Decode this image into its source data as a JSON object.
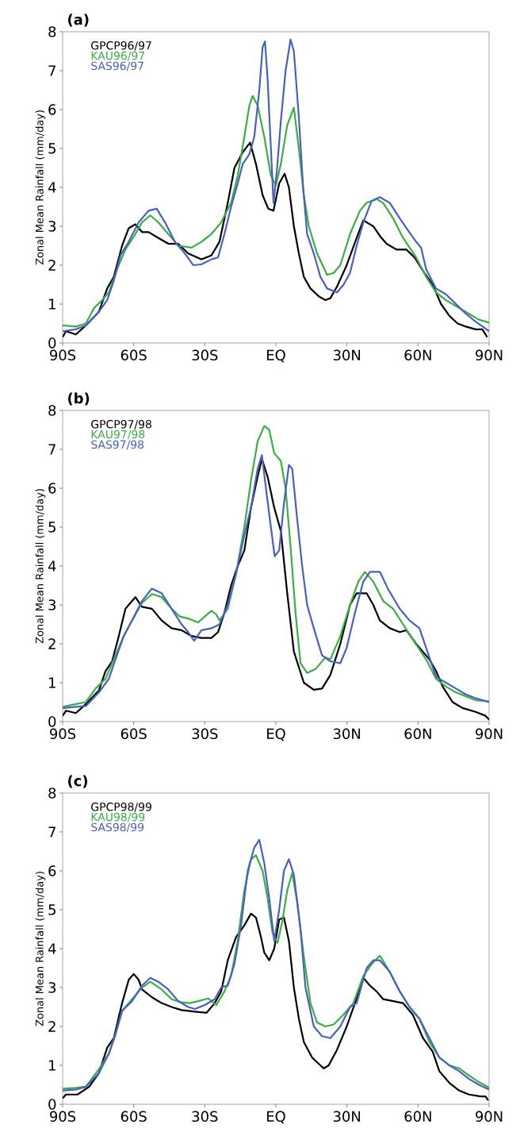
{
  "chart_data": [
    {
      "type": "line",
      "title": "(a)",
      "ylabel": "Zonal Mean Rainfall (mm/day)",
      "xlim": [
        -90,
        90
      ],
      "ylim": [
        0,
        8
      ],
      "xticks": [
        {
          "value": -90,
          "label": "90S"
        },
        {
          "value": -60,
          "label": "60S"
        },
        {
          "value": -30,
          "label": "30S"
        },
        {
          "value": 0,
          "label": "EQ"
        },
        {
          "value": 30,
          "label": "30N"
        },
        {
          "value": 60,
          "label": "60N"
        },
        {
          "value": 90,
          "label": "90N"
        }
      ],
      "yticks": [
        0,
        1,
        2,
        3,
        4,
        5,
        6,
        7,
        8
      ],
      "legend": "top left",
      "grid": false,
      "line_style": "solid",
      "series": [
        {
          "name": "GPCP96/97",
          "color": "#000000",
          "x": [
            -90,
            -88.6,
            -84.4,
            -80.2,
            -74.7,
            -71.2,
            -68.4,
            -64.9,
            -62.1,
            -59.3,
            -56.5,
            -53.7,
            -49.6,
            -45.4,
            -41.2,
            -37,
            -31.4,
            -27.2,
            -23.8,
            -20.3,
            -17.5,
            -14,
            -10.9,
            -8.4,
            -5.6,
            -3.2,
            -1,
            1.4,
            3.7,
            5.5,
            7.6,
            9.7,
            11.8,
            14.6,
            18.1,
            20.9,
            23,
            25.8,
            29.9,
            34.1,
            36.9,
            41.1,
            43.9,
            46.7,
            50.9,
            55.1,
            58.5,
            62.7,
            66.2,
            69.7,
            73.2,
            76.7,
            80.2,
            84.3,
            87.1,
            89.2
          ],
          "values": [
            0.15,
            0.3,
            0.22,
            0.45,
            0.8,
            1.4,
            1.7,
            2.5,
            2.95,
            3.05,
            2.85,
            2.85,
            2.7,
            2.55,
            2.55,
            2.3,
            2.15,
            2.25,
            2.6,
            3.6,
            4.5,
            4.9,
            5.15,
            4.6,
            3.8,
            3.45,
            3.4,
            4.1,
            4.35,
            4.0,
            3.0,
            2.3,
            1.7,
            1.4,
            1.2,
            1.1,
            1.15,
            1.45,
            2.0,
            2.7,
            3.15,
            3.0,
            2.75,
            2.55,
            2.4,
            2.4,
            2.2,
            1.8,
            1.5,
            1.0,
            0.7,
            0.5,
            0.42,
            0.35,
            0.35,
            0.15
          ]
        },
        {
          "name": "KAU96/97",
          "color": "#3cae45",
          "x": [
            -90,
            -84.4,
            -80.2,
            -76.7,
            -73.3,
            -70.5,
            -66.3,
            -63.5,
            -59.3,
            -56.5,
            -53,
            -49.6,
            -45.4,
            -41.2,
            -35.6,
            -31.4,
            -27.2,
            -23.1,
            -18.9,
            -16.1,
            -13.3,
            -11.2,
            -9.8,
            -7.7,
            -4.9,
            -2.1,
            0,
            2.1,
            4.8,
            7.6,
            9.7,
            11.8,
            13.9,
            17.4,
            21.6,
            24.4,
            27.2,
            31.3,
            35.5,
            38.3,
            42.5,
            45.3,
            49.5,
            53.7,
            59.2,
            63.4,
            67.6,
            71.8,
            76,
            81.5,
            85.7,
            90
          ],
          "values": [
            0.45,
            0.42,
            0.5,
            0.9,
            1.1,
            1.3,
            2.0,
            2.4,
            2.8,
            3.1,
            3.28,
            3.1,
            2.8,
            2.5,
            2.45,
            2.6,
            2.8,
            3.1,
            3.6,
            4.3,
            5.3,
            6.1,
            6.35,
            6.1,
            5.3,
            4.3,
            4.05,
            4.6,
            5.6,
            6.05,
            5.0,
            3.8,
            3.0,
            2.3,
            1.75,
            1.8,
            2.0,
            2.8,
            3.4,
            3.6,
            3.7,
            3.6,
            3.2,
            2.7,
            2.2,
            1.7,
            1.3,
            1.1,
            0.95,
            0.75,
            0.6,
            0.52
          ]
        },
        {
          "name": "SAS96/97",
          "color": "#4a60c0",
          "x": [
            -90,
            -84.4,
            -80.2,
            -74.7,
            -71.2,
            -68.4,
            -65.6,
            -62.1,
            -57.9,
            -53.7,
            -50.3,
            -46.8,
            -42.6,
            -38.4,
            -34.9,
            -31.4,
            -27.2,
            -24.4,
            -21.7,
            -18.9,
            -16.1,
            -14,
            -11.2,
            -9.1,
            -7,
            -5.6,
            -4.6,
            -3.5,
            -2.1,
            -1,
            0.4,
            2.1,
            4.1,
            6.2,
            7.6,
            9.7,
            11.5,
            13.2,
            16,
            18.8,
            21.6,
            25.8,
            28.6,
            31.3,
            34.1,
            36.9,
            40.4,
            43.9,
            48.1,
            52.3,
            55.7,
            59.2,
            61.3,
            63.4,
            67.6,
            71.8,
            76,
            80.2,
            84.3,
            87.8,
            90
          ],
          "values": [
            0.3,
            0.35,
            0.45,
            0.8,
            1.1,
            1.6,
            2.25,
            2.6,
            3.1,
            3.4,
            3.45,
            3.1,
            2.6,
            2.3,
            2.0,
            2.02,
            2.15,
            2.2,
            2.8,
            3.5,
            4.1,
            4.6,
            4.85,
            5.3,
            6.5,
            7.6,
            7.75,
            6.8,
            5.0,
            3.6,
            4.4,
            5.7,
            7.0,
            7.8,
            7.5,
            5.8,
            4.0,
            2.8,
            2.3,
            1.7,
            1.4,
            1.3,
            1.5,
            1.8,
            2.5,
            3.1,
            3.65,
            3.75,
            3.6,
            3.2,
            2.9,
            2.6,
            2.45,
            1.9,
            1.4,
            1.25,
            1.0,
            0.75,
            0.55,
            0.4,
            0.3
          ]
        }
      ]
    },
    {
      "type": "line",
      "title": "(b)",
      "ylabel": "Zonal Mean Rainfall (mm/day)",
      "xlim": [
        -90,
        90
      ],
      "ylim": [
        0,
        8
      ],
      "xticks": [
        {
          "value": -90,
          "label": "90S"
        },
        {
          "value": -60,
          "label": "60S"
        },
        {
          "value": -30,
          "label": "30S"
        },
        {
          "value": 0,
          "label": "EQ"
        },
        {
          "value": 30,
          "label": "30N"
        },
        {
          "value": 60,
          "label": "60N"
        },
        {
          "value": 90,
          "label": "90N"
        }
      ],
      "yticks": [
        0,
        1,
        2,
        3,
        4,
        5,
        6,
        7,
        8
      ],
      "legend": "top left",
      "grid": false,
      "line_style": "solid",
      "series": [
        {
          "name": "GPCP97/98",
          "color": "#000000",
          "x": [
            -90,
            -88.6,
            -84.4,
            -80.2,
            -74.7,
            -71.9,
            -69.1,
            -66.3,
            -63.5,
            -59.3,
            -56.5,
            -52.3,
            -48.2,
            -44,
            -39.8,
            -35.6,
            -31.4,
            -27.2,
            -24.4,
            -21.7,
            -18.9,
            -16.1,
            -13.3,
            -10.5,
            -7.7,
            -5.9,
            -3.5,
            -0.7,
            2.1,
            4.8,
            7.6,
            11.8,
            16,
            19.5,
            23,
            27.2,
            31.3,
            34.1,
            38.3,
            41.1,
            43.9,
            48.1,
            52.3,
            55.1,
            59.2,
            64.8,
            67.6,
            70.4,
            74.6,
            78.8,
            84.3,
            88.5,
            90
          ],
          "values": [
            0.15,
            0.28,
            0.22,
            0.45,
            0.8,
            1.3,
            1.55,
            2.2,
            2.9,
            3.2,
            2.95,
            2.9,
            2.6,
            2.4,
            2.35,
            2.2,
            2.15,
            2.15,
            2.3,
            2.8,
            3.5,
            4.0,
            4.4,
            5.5,
            6.3,
            6.75,
            6.3,
            5.5,
            4.9,
            3.3,
            1.8,
            1.0,
            0.82,
            0.85,
            1.2,
            2.0,
            3.0,
            3.3,
            3.3,
            3.0,
            2.6,
            2.4,
            2.3,
            2.35,
            2.0,
            1.6,
            1.3,
            0.9,
            0.5,
            0.35,
            0.25,
            0.15,
            0.05
          ]
        },
        {
          "name": "KAU97/98",
          "color": "#3cae45",
          "x": [
            -90,
            -84.4,
            -80.2,
            -76.1,
            -71.9,
            -67.7,
            -64.2,
            -60.7,
            -56.5,
            -52.3,
            -48.2,
            -44,
            -40.5,
            -37,
            -32.8,
            -30,
            -27.2,
            -25.1,
            -23.8,
            -20.3,
            -16.8,
            -13.3,
            -10.5,
            -7.7,
            -4.9,
            -2.8,
            -0.7,
            2.1,
            4.1,
            6.2,
            8.3,
            10.4,
            13.2,
            16.7,
            20.9,
            23,
            27.2,
            31.3,
            34.8,
            37.6,
            41.1,
            45.3,
            49.5,
            53.7,
            58.5,
            63.4,
            67.6,
            71.8,
            76,
            80.2,
            84.3,
            90
          ],
          "values": [
            0.38,
            0.45,
            0.5,
            0.85,
            1.1,
            1.7,
            2.2,
            2.6,
            3.05,
            3.28,
            3.2,
            2.9,
            2.7,
            2.65,
            2.55,
            2.7,
            2.85,
            2.75,
            2.6,
            2.9,
            3.8,
            5.0,
            6.2,
            7.2,
            7.6,
            7.5,
            6.9,
            6.7,
            6.0,
            4.5,
            2.8,
            1.5,
            1.25,
            1.35,
            1.65,
            1.6,
            2.2,
            3.0,
            3.6,
            3.85,
            3.6,
            3.1,
            2.9,
            2.5,
            2.05,
            1.6,
            1.1,
            0.9,
            0.75,
            0.65,
            0.55,
            0.52
          ]
        },
        {
          "name": "SAS97/98",
          "color": "#4a60c0",
          "x": [
            -90,
            -84.4,
            -80.2,
            -74.7,
            -70.5,
            -67.7,
            -64.2,
            -60.7,
            -56.5,
            -52.3,
            -48.2,
            -44,
            -39.8,
            -37,
            -34.5,
            -31.4,
            -27.2,
            -23.8,
            -20.3,
            -16.8,
            -13.3,
            -10.5,
            -7.7,
            -5.9,
            -4.2,
            -2.1,
            -0.5,
            1.4,
            3.4,
            5.5,
            6.9,
            9,
            11.1,
            13.2,
            16,
            19.5,
            23,
            27.2,
            29.9,
            33.4,
            36.9,
            39.7,
            43.9,
            47.4,
            52.3,
            56.4,
            60.6,
            63.4,
            67.6,
            71.8,
            76,
            80.2,
            84.3,
            90
          ],
          "values": [
            0.35,
            0.38,
            0.4,
            0.75,
            1.1,
            1.6,
            2.2,
            2.6,
            3.1,
            3.42,
            3.3,
            2.9,
            2.5,
            2.3,
            2.08,
            2.35,
            2.4,
            2.5,
            3.0,
            3.8,
            4.8,
            5.5,
            6.5,
            6.85,
            6.0,
            5.0,
            4.25,
            4.4,
            5.6,
            6.6,
            6.5,
            5.2,
            4.0,
            3.0,
            2.4,
            1.7,
            1.55,
            1.5,
            1.9,
            2.8,
            3.6,
            3.85,
            3.85,
            3.4,
            2.9,
            2.6,
            2.4,
            1.9,
            1.15,
            1.0,
            0.85,
            0.7,
            0.6,
            0.5
          ]
        }
      ]
    },
    {
      "type": "line",
      "title": "(c)",
      "ylabel": "Zonal Mean Rainfall (mm/day)",
      "xlim": [
        -90,
        90
      ],
      "ylim": [
        0,
        8
      ],
      "xticks": [
        {
          "value": -90,
          "label": "90S"
        },
        {
          "value": -60,
          "label": "60S"
        },
        {
          "value": -30,
          "label": "30S"
        },
        {
          "value": 0,
          "label": "EQ"
        },
        {
          "value": 30,
          "label": "30N"
        },
        {
          "value": 60,
          "label": "60N"
        },
        {
          "value": 90,
          "label": "90N"
        }
      ],
      "yticks": [
        0,
        1,
        2,
        3,
        4,
        5,
        6,
        7,
        8
      ],
      "legend": "top left",
      "grid": false,
      "line_style": "solid",
      "series": [
        {
          "name": "GPCP98/99",
          "color": "#000000",
          "x": [
            -90,
            -88.6,
            -83.7,
            -78.8,
            -74.7,
            -71.2,
            -68.4,
            -64.9,
            -62.1,
            -60,
            -57.9,
            -56.5,
            -52.3,
            -48.2,
            -44,
            -39.8,
            -34.2,
            -29.3,
            -25.8,
            -23.1,
            -20.3,
            -16.8,
            -13.3,
            -10.5,
            -8.4,
            -6.3,
            -4.9,
            -2.8,
            -0.7,
            1.4,
            3.4,
            5.5,
            7.6,
            9.7,
            11.8,
            15.3,
            18.8,
            20.2,
            22.3,
            25.8,
            29.9,
            33.4,
            36.9,
            39.7,
            42.5,
            45.3,
            49.5,
            53.7,
            57.8,
            62.1,
            66.2,
            69,
            73.2,
            77.4,
            81.5,
            86.4,
            88.5,
            89.6
          ],
          "values": [
            0.15,
            0.25,
            0.25,
            0.45,
            0.8,
            1.45,
            1.7,
            2.6,
            3.2,
            3.35,
            3.2,
            2.95,
            2.75,
            2.6,
            2.5,
            2.42,
            2.38,
            2.35,
            2.6,
            2.9,
            3.7,
            4.3,
            4.6,
            4.9,
            4.8,
            4.3,
            3.9,
            3.7,
            4.0,
            4.75,
            4.8,
            4.2,
            3.0,
            2.2,
            1.6,
            1.2,
            1.0,
            0.92,
            1.0,
            1.4,
            2.0,
            2.6,
            3.25,
            3.05,
            2.9,
            2.7,
            2.65,
            2.6,
            2.3,
            1.7,
            1.35,
            0.85,
            0.55,
            0.35,
            0.25,
            0.2,
            0.2,
            0.1
          ]
        },
        {
          "name": "KAU98/99",
          "color": "#3cae45",
          "x": [
            -90,
            -84.4,
            -80.2,
            -74.7,
            -70.5,
            -67.7,
            -64.9,
            -60.7,
            -56.5,
            -53,
            -48.2,
            -44,
            -39.8,
            -36.3,
            -32.8,
            -28.6,
            -25.1,
            -21.7,
            -18.9,
            -16.1,
            -13.3,
            -10.5,
            -8.4,
            -5.6,
            -3.5,
            -1.4,
            0.7,
            2.7,
            4.8,
            6.9,
            9,
            11.8,
            14.6,
            17.4,
            20.9,
            24.4,
            28.5,
            32.7,
            36.9,
            40.4,
            43.9,
            48.1,
            52.3,
            56.4,
            60.6,
            64.8,
            69,
            73.2,
            77.4,
            81.5,
            85.7,
            90
          ],
          "values": [
            0.4,
            0.42,
            0.45,
            0.9,
            1.3,
            1.8,
            2.4,
            2.7,
            3.0,
            3.15,
            2.95,
            2.7,
            2.62,
            2.6,
            2.65,
            2.72,
            2.55,
            2.9,
            3.3,
            4.2,
            5.5,
            6.3,
            6.4,
            6.0,
            5.3,
            4.4,
            4.15,
            4.7,
            5.5,
            5.95,
            5.2,
            3.8,
            2.6,
            2.1,
            2.0,
            2.05,
            2.3,
            2.6,
            3.3,
            3.6,
            3.82,
            3.4,
            2.9,
            2.5,
            2.2,
            1.6,
            1.2,
            1.0,
            0.92,
            0.74,
            0.57,
            0.43
          ]
        },
        {
          "name": "SAS98/99",
          "color": "#4a60c0",
          "x": [
            -90,
            -84.4,
            -80.2,
            -74.7,
            -70.5,
            -67.7,
            -64.9,
            -60.7,
            -56.5,
            -53,
            -49.6,
            -45.4,
            -41.2,
            -37,
            -34.2,
            -30,
            -25.8,
            -23.1,
            -20.3,
            -17.5,
            -14.7,
            -11.9,
            -9.1,
            -7,
            -4.9,
            -2.8,
            -0.7,
            1.4,
            3.4,
            5.5,
            7.6,
            10.4,
            12.5,
            16,
            19.5,
            23,
            27.2,
            31.3,
            34.1,
            38.3,
            41.1,
            43.9,
            48.1,
            52.3,
            56.4,
            60.6,
            64.8,
            69,
            73.2,
            77.4,
            81.5,
            85.7,
            90
          ],
          "values": [
            0.35,
            0.38,
            0.45,
            0.8,
            1.3,
            1.8,
            2.4,
            2.65,
            3.05,
            3.25,
            3.15,
            2.95,
            2.65,
            2.5,
            2.45,
            2.55,
            2.7,
            3.0,
            3.05,
            3.6,
            4.6,
            6.0,
            6.6,
            6.8,
            6.2,
            5.3,
            4.2,
            5.0,
            6.0,
            6.3,
            5.9,
            4.5,
            3.0,
            2.0,
            1.75,
            1.7,
            2.0,
            2.5,
            2.6,
            3.5,
            3.7,
            3.7,
            3.4,
            2.9,
            2.5,
            2.2,
            1.7,
            1.2,
            1.0,
            0.85,
            0.65,
            0.5,
            0.38
          ]
        }
      ]
    }
  ]
}
